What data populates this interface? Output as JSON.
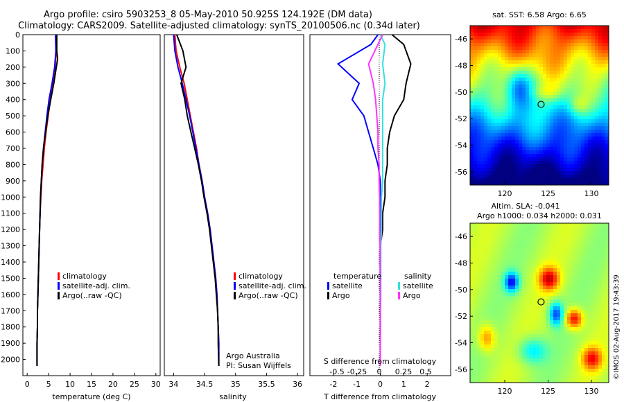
{
  "header": {
    "title_line1": "Argo profile: csiro 5903253_8 05-May-2010 50.925S 124.192E (DM data)",
    "title_line2": "Climatology: CARS2009. Satellite-adjusted climatology: synTS_20100506.nc (0.34d later)"
  },
  "colors": {
    "climatology": "#ff0000",
    "satellite": "#0000ff",
    "argo": "#000000",
    "salinity_satellite": "#33e0e0",
    "salinity_argo": "#ff33ff"
  },
  "chart_data": [
    {
      "type": "line",
      "name": "temperature-profile",
      "xlabel": "temperature (deg C)",
      "xlim": [
        -1,
        31
      ],
      "xticks": [
        0,
        5,
        10,
        15,
        20,
        25,
        30
      ],
      "ylim": [
        2100,
        0
      ],
      "yticks": [
        0,
        100,
        200,
        300,
        400,
        500,
        600,
        700,
        800,
        900,
        1000,
        1100,
        1200,
        1300,
        1400,
        1500,
        1600,
        1700,
        1800,
        1900,
        2000
      ],
      "legend": [
        "climatology",
        "satellite-adj. clim.",
        "Argo(..raw -QC)"
      ],
      "series": [
        {
          "name": "climatology",
          "color": "#ff0000",
          "x": [
            6.8,
            6.8,
            6.5,
            6.0,
            5.4,
            4.9,
            4.4,
            4.0,
            3.7,
            3.4,
            3.2,
            3.0,
            2.9,
            2.8,
            2.7,
            2.6,
            2.5,
            2.4,
            2.4,
            2.3,
            2.3
          ],
          "y": [
            0,
            100,
            200,
            300,
            400,
            500,
            600,
            700,
            800,
            900,
            1000,
            1100,
            1200,
            1300,
            1400,
            1500,
            1600,
            1700,
            1800,
            1900,
            2040
          ]
        },
        {
          "name": "satellite-adj. clim.",
          "color": "#0000ff",
          "x": [
            6.6,
            6.7,
            6.4,
            5.8,
            5.1,
            4.6,
            4.2,
            3.8,
            3.5,
            3.3,
            3.1,
            3.0,
            2.9,
            2.8,
            2.7,
            2.6,
            2.5,
            2.4,
            2.4,
            2.3,
            2.3
          ],
          "y": [
            0,
            100,
            200,
            300,
            400,
            500,
            600,
            700,
            800,
            900,
            1000,
            1100,
            1200,
            1300,
            1400,
            1500,
            1600,
            1700,
            1800,
            1900,
            2040
          ]
        },
        {
          "name": "Argo(..raw -QC)",
          "color": "#000000",
          "x": [
            6.9,
            6.9,
            7.1,
            6.2,
            5.5,
            4.8,
            4.3,
            3.8,
            3.5,
            3.3,
            3.1,
            3.0,
            2.9,
            2.8,
            2.7,
            2.6,
            2.5,
            2.4,
            2.4,
            2.3,
            2.3
          ],
          "y": [
            0,
            100,
            150,
            300,
            400,
            500,
            600,
            700,
            800,
            900,
            1000,
            1100,
            1200,
            1300,
            1400,
            1500,
            1600,
            1700,
            1800,
            1900,
            2040
          ]
        }
      ]
    },
    {
      "type": "line",
      "name": "salinity-profile",
      "xlabel": "salinity",
      "xlim": [
        33.85,
        36.1
      ],
      "xticks": [
        34,
        34.5,
        35,
        35.5,
        36
      ],
      "ylim": [
        2100,
        0
      ],
      "legend": [
        "climatology",
        "satellite-adj. clim.",
        "Argo(..raw -QC)"
      ],
      "annotation": [
        "Argo Australia",
        "PI: Susan Wijffels"
      ],
      "series": [
        {
          "name": "climatology",
          "color": "#ff0000",
          "x": [
            34.02,
            34.04,
            34.1,
            34.17,
            34.22,
            34.27,
            34.32,
            34.37,
            34.41,
            34.46,
            34.5,
            34.55,
            34.59,
            34.62,
            34.65,
            34.68,
            34.7,
            34.71,
            34.72,
            34.73,
            34.73
          ],
          "y": [
            0,
            100,
            200,
            300,
            400,
            500,
            600,
            700,
            800,
            900,
            1000,
            1100,
            1200,
            1300,
            1400,
            1500,
            1600,
            1700,
            1800,
            1900,
            2040
          ]
        },
        {
          "name": "satellite-adj. clim.",
          "color": "#0000ff",
          "x": [
            34.0,
            34.02,
            34.07,
            34.14,
            34.2,
            34.26,
            34.31,
            34.36,
            34.41,
            34.46,
            34.5,
            34.55,
            34.59,
            34.62,
            34.65,
            34.68,
            34.7,
            34.71,
            34.72,
            34.73,
            34.73
          ],
          "y": [
            0,
            100,
            200,
            300,
            400,
            500,
            600,
            700,
            800,
            900,
            1000,
            1100,
            1200,
            1300,
            1400,
            1500,
            1600,
            1700,
            1800,
            1900,
            2040
          ]
        },
        {
          "name": "Argo(..raw -QC)",
          "color": "#000000",
          "x": [
            34.05,
            34.15,
            34.2,
            34.12,
            34.18,
            34.22,
            34.28,
            34.34,
            34.4,
            34.45,
            34.49,
            34.54,
            34.58,
            34.61,
            34.64,
            34.67,
            34.69,
            34.71,
            34.72,
            34.72,
            34.73
          ],
          "y": [
            0,
            100,
            200,
            300,
            400,
            500,
            600,
            700,
            800,
            900,
            1000,
            1100,
            1200,
            1300,
            1400,
            1500,
            1600,
            1700,
            1800,
            1900,
            2040
          ]
        }
      ]
    },
    {
      "type": "line",
      "name": "difference-profile",
      "xlabel": "T difference from climatology",
      "xlim": [
        -3,
        3
      ],
      "xticks": [
        -2,
        -1,
        0,
        1,
        2
      ],
      "top_axis_label": "S difference from climatology",
      "top_ticks": [
        "-0.5",
        "-0.25",
        "0",
        "0.25",
        "0.5"
      ],
      "legend_temperature_title": "temperature",
      "legend_salinity_title": "salinity",
      "legend": [
        "satellite",
        "Argo"
      ],
      "series": [
        {
          "name": "temperature satellite",
          "color": "#0000ff",
          "x": [
            -0.1,
            -0.4,
            -1.8,
            -0.9,
            -1.2,
            -0.7,
            -0.5,
            -0.3,
            -0.1,
            0.0,
            0.0,
            0.0,
            0.0,
            0.0,
            0.0,
            0.0,
            0.0,
            0.0,
            0.0,
            0.0,
            0.0
          ],
          "y": [
            0,
            60,
            180,
            300,
            400,
            500,
            600,
            700,
            800,
            900,
            1000,
            1100,
            1200,
            1300,
            1400,
            1500,
            1600,
            1700,
            1800,
            1900,
            2040
          ]
        },
        {
          "name": "temperature Argo",
          "color": "#000000",
          "x": [
            0.5,
            1.0,
            1.3,
            1.1,
            1.0,
            0.6,
            0.4,
            0.3,
            0.3,
            0.2,
            0.2,
            0.1,
            0.1,
            0.0,
            0.0,
            0.0,
            0.0,
            0.0,
            0.0,
            0.0,
            0.0
          ],
          "y": [
            0,
            60,
            180,
            300,
            400,
            500,
            600,
            700,
            800,
            900,
            1000,
            1100,
            1200,
            1300,
            1400,
            1500,
            1600,
            1700,
            1800,
            1900,
            2040
          ]
        },
        {
          "name": "salinity satellite",
          "color": "#33e0e0",
          "x": [
            0.0,
            0.2,
            0.1,
            0.2,
            0.1,
            0.1,
            0.1,
            0.1,
            0.1,
            0.1,
            0.05,
            0.05,
            0.05,
            0.02,
            0.02,
            0.02,
            0.02,
            0.01,
            0.01,
            0.0,
            0.0
          ],
          "y": [
            0,
            60,
            180,
            300,
            400,
            500,
            600,
            700,
            800,
            900,
            1000,
            1100,
            1200,
            1300,
            1400,
            1500,
            1600,
            1700,
            1800,
            1900,
            2040
          ]
        },
        {
          "name": "salinity Argo",
          "color": "#ff33ff",
          "x": [
            0.1,
            -0.1,
            -0.5,
            -0.3,
            -0.2,
            -0.15,
            -0.1,
            -0.1,
            -0.05,
            -0.05,
            -0.03,
            -0.02,
            -0.02,
            -0.01,
            -0.01,
            0.0,
            0.0,
            0.0,
            0.0,
            0.0,
            0.0
          ],
          "y": [
            0,
            60,
            180,
            300,
            400,
            500,
            600,
            700,
            800,
            900,
            1000,
            1100,
            1200,
            1300,
            1400,
            1500,
            1600,
            1700,
            1800,
            1900,
            2040
          ]
        }
      ]
    },
    {
      "type": "heatmap",
      "name": "sst-map",
      "title": "sat. SST: 6.58 Argo: 6.65",
      "xlim": [
        116,
        132
      ],
      "ylim": [
        -57,
        -45
      ],
      "xticks": [
        120,
        125,
        130
      ],
      "yticks": [
        -46,
        -48,
        -50,
        -52,
        -54,
        -56
      ],
      "colormap": "jet",
      "marker": {
        "lon": 124.192,
        "lat": -50.925
      }
    },
    {
      "type": "heatmap",
      "name": "sla-map",
      "title_line1": "Altim. SLA: -0.041",
      "title_line2": "Argo h1000: 0.034 h2000: 0.031",
      "xlim": [
        116,
        132
      ],
      "ylim": [
        -57,
        -45
      ],
      "xticks": [
        120,
        125,
        130
      ],
      "yticks": [
        -46,
        -48,
        -50,
        -52,
        -54,
        -56
      ],
      "colormap": "jet",
      "marker": {
        "lon": 124.192,
        "lat": -50.925
      }
    }
  ],
  "footer": {
    "credit": "©IMOS 02-Aug-2017 19:43:39"
  }
}
